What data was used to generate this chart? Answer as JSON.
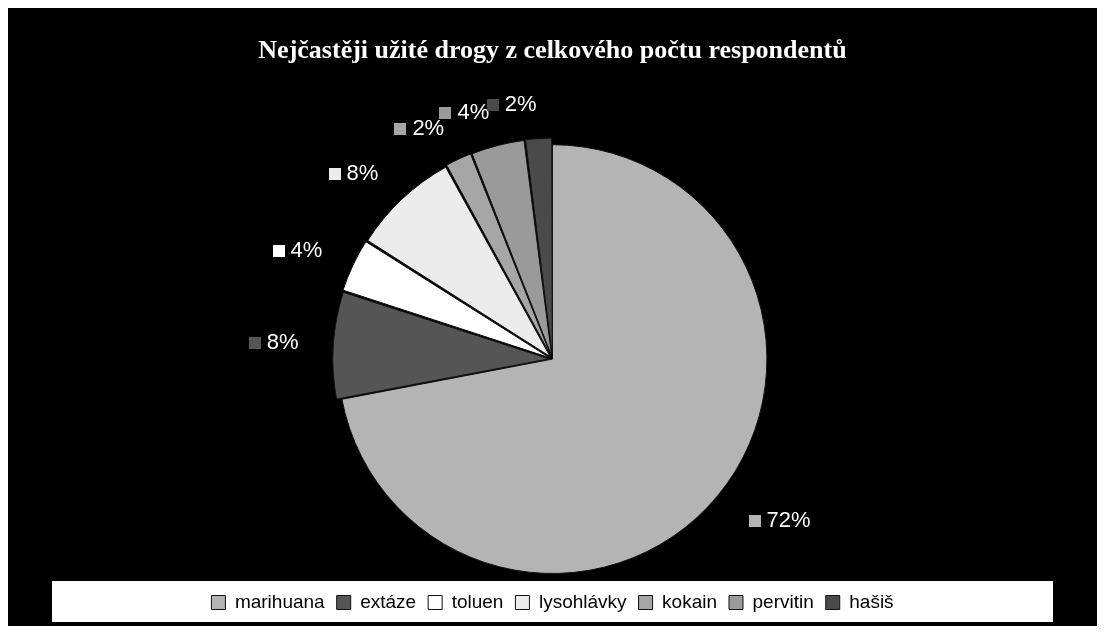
{
  "chart_data": {
    "type": "pie",
    "title": "Nejčastěji užité drogy z celkového počtu respondentů",
    "categories": [
      "marihuana",
      "extáze",
      "toluen",
      "lysohlávky",
      "kokain",
      "pervitin",
      "hašiš"
    ],
    "values": [
      72,
      8,
      4,
      8,
      2,
      4,
      2
    ],
    "value_labels": [
      "72%",
      "8%",
      "4%",
      "8%",
      "2%",
      "4%",
      "2%"
    ],
    "colors": [
      "#b4b4b4",
      "#555555",
      "#ffffff",
      "#ececec",
      "#a6a6a6",
      "#9a9a9a",
      "#4a4a4a"
    ],
    "legend": "bottom"
  }
}
